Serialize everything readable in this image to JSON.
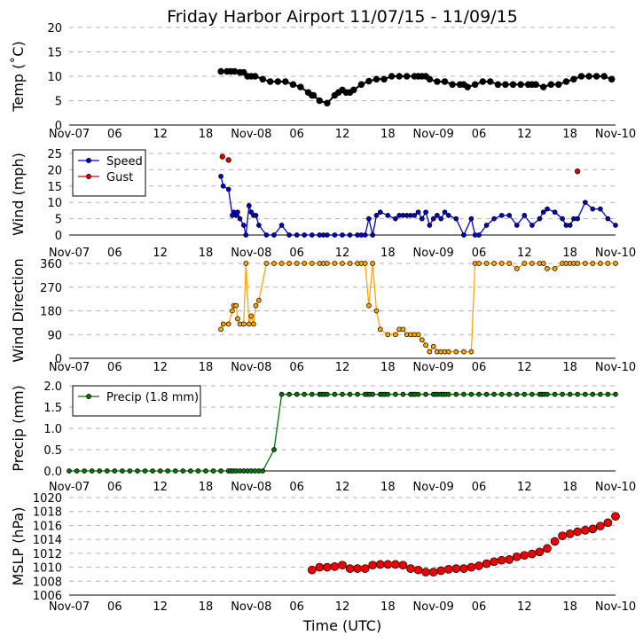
{
  "title": "Friday Harbor Airport 11/07/15 - 11/09/15",
  "xlabel": "Time (UTC)",
  "x_ticks": [
    "Nov-07",
    "06",
    "12",
    "18",
    "Nov-08",
    "06",
    "12",
    "18",
    "Nov-09",
    "06",
    "12",
    "18",
    "Nov-10"
  ],
  "x_range_hours": [
    0,
    72
  ],
  "colors": {
    "temp": "#000000",
    "speed": "#0000cc",
    "gust": "#dd0000",
    "dir": "#ffa500",
    "precip": "#007700",
    "mslp": "#ee0000"
  },
  "chart_data": [
    {
      "type": "line",
      "ylabel": "Temp (˚C)",
      "ylim": [
        0,
        20
      ],
      "yticks": [
        "0",
        "5",
        "10",
        "15",
        "20"
      ],
      "grid": true,
      "series": [
        {
          "x": [
            20,
            20.8,
            21.3,
            21.8,
            22.5,
            23,
            23.5,
            24,
            24.5,
            25.5,
            26.5,
            27.5,
            28.5,
            29.5,
            30.5,
            31.5,
            32,
            32.2,
            33,
            34,
            35,
            35.5,
            36,
            36.5,
            37,
            37.5,
            38.5,
            39.5,
            40.5,
            41.5,
            42.5,
            43.5,
            44.5,
            45.5,
            46,
            46.5,
            47,
            47.5,
            48.5,
            49.5,
            50.5,
            51.5,
            52,
            52.5,
            53.5,
            54.5,
            55.5,
            56.5,
            57.5,
            58.5,
            59.5,
            60.5,
            61,
            61.5,
            62.5,
            63.5,
            64.5,
            65.5,
            66.5,
            67.5,
            68.5,
            69.5,
            70.5,
            71.5
          ],
          "y": [
            11,
            11,
            11,
            11,
            10.8,
            10.8,
            10,
            10,
            10,
            9.4,
            8.9,
            8.9,
            8.9,
            8.3,
            7.8,
            6.7,
            6.1,
            6.1,
            5,
            4.5,
            6.1,
            6.7,
            7.2,
            6.7,
            6.7,
            7.2,
            8.3,
            9,
            9.4,
            9.4,
            10,
            10,
            10,
            10,
            10,
            10,
            10,
            9.4,
            8.9,
            8.9,
            8.3,
            8.3,
            8.3,
            7.8,
            8.3,
            8.9,
            8.9,
            8.3,
            8.3,
            8.3,
            8.3,
            8.3,
            8.3,
            8.3,
            7.8,
            8.3,
            8.3,
            8.9,
            9.4,
            10,
            10,
            10,
            10,
            9.4
          ]
        }
      ]
    },
    {
      "type": "line",
      "ylabel": "Wind (mph)",
      "ylim": [
        0,
        25
      ],
      "yticks": [
        "0",
        "5",
        "10",
        "15",
        "20",
        "25"
      ],
      "legend": "upper-left",
      "grid": true,
      "series": [
        {
          "name": "Speed",
          "x": [
            20,
            20.3,
            21,
            21.5,
            21.7,
            22,
            22.2,
            22.5,
            23,
            23.3,
            23.7,
            24,
            24.3,
            24.6,
            25,
            26,
            27,
            28,
            29,
            30,
            31,
            32,
            33,
            33.5,
            34,
            35,
            36,
            37,
            38,
            38.5,
            39,
            39.5,
            40,
            40.5,
            41,
            42,
            43,
            43.5,
            44,
            44.5,
            45,
            45.5,
            46,
            46.5,
            47,
            47.5,
            48,
            48.5,
            49,
            49.5,
            50,
            51,
            52,
            53,
            53.5,
            54,
            55,
            56,
            57,
            58,
            59,
            60,
            61,
            62,
            62.5,
            63,
            64,
            65,
            65.5,
            66,
            66.5,
            67,
            68,
            69,
            70,
            71,
            72
          ],
          "y": [
            18,
            15,
            14,
            6,
            7,
            6,
            7,
            5,
            3,
            0,
            9,
            7,
            6,
            6,
            3,
            0,
            0,
            3,
            0,
            0,
            0,
            0,
            0,
            0,
            0,
            0,
            0,
            0,
            0,
            0,
            0,
            5,
            0,
            6,
            7,
            6,
            5,
            6,
            6,
            6,
            6,
            6,
            7,
            5,
            7,
            3,
            5,
            6,
            5,
            7,
            6,
            5,
            0,
            5,
            0,
            0,
            3,
            5,
            6,
            6,
            3,
            6,
            3,
            5,
            7,
            8,
            7,
            5,
            3,
            3,
            5,
            5,
            10,
            8,
            8,
            5,
            3
          ]
        },
        {
          "name": "Gust",
          "x": [
            20.2,
            21,
            67
          ],
          "y": [
            24,
            23,
            19.5
          ]
        }
      ]
    },
    {
      "type": "line",
      "ylabel": "Wind Direction",
      "ylim": [
        0,
        360
      ],
      "yticks": [
        "0",
        "90",
        "180",
        "270",
        "360"
      ],
      "grid": true,
      "series": [
        {
          "x": [
            20,
            20.3,
            21,
            21.5,
            21.7,
            22,
            22.2,
            22.5,
            23,
            23.3,
            23.7,
            24,
            24.3,
            24.6,
            25,
            26,
            27,
            28,
            29,
            30,
            31,
            32,
            33,
            33.5,
            34,
            35,
            36,
            37,
            38,
            38.5,
            39,
            39.5,
            40,
            40.5,
            41,
            42,
            43,
            43.5,
            44,
            44.5,
            45,
            45.5,
            46,
            46.5,
            47,
            47.5,
            48,
            48.5,
            49,
            49.5,
            50,
            51,
            52,
            53,
            53.5,
            54,
            55,
            56,
            57,
            58,
            59,
            60,
            61,
            62,
            62.5,
            63,
            64,
            65,
            65.5,
            66,
            66.5,
            67,
            68,
            69,
            70,
            71,
            72
          ],
          "y": [
            110,
            130,
            130,
            180,
            200,
            200,
            150,
            130,
            130,
            360,
            130,
            160,
            130,
            200,
            220,
            360,
            360,
            360,
            360,
            360,
            360,
            360,
            360,
            360,
            360,
            360,
            360,
            360,
            360,
            360,
            360,
            200,
            360,
            180,
            110,
            90,
            90,
            110,
            110,
            90,
            90,
            90,
            90,
            70,
            50,
            25,
            45,
            25,
            25,
            25,
            25,
            25,
            25,
            25,
            360,
            360,
            360,
            360,
            360,
            360,
            340,
            360,
            360,
            360,
            360,
            340,
            340,
            360,
            360,
            360,
            360,
            360,
            360,
            360,
            360,
            360,
            360
          ]
        }
      ]
    },
    {
      "type": "line",
      "ylabel": "Precip (mm)",
      "ylim": [
        0,
        2
      ],
      "yticks": [
        "0.0",
        "0.5",
        "1.0",
        "1.5",
        "2.0"
      ],
      "legend": "upper-left",
      "grid": true,
      "series": [
        {
          "name": "Precip (1.8 mm)",
          "x": [
            0,
            1,
            2,
            3,
            4,
            5,
            6,
            7,
            8,
            9,
            10,
            11,
            12,
            13,
            14,
            15,
            16,
            17,
            18,
            19,
            20,
            21,
            21.3,
            21.6,
            22,
            22.5,
            23,
            23.5,
            24,
            24.5,
            25,
            25.5,
            27,
            28,
            29,
            30,
            31,
            32,
            33,
            33.3,
            33.6,
            34,
            35,
            36,
            37,
            38,
            39,
            39.3,
            39.6,
            40,
            41,
            41.3,
            41.6,
            42,
            43,
            44,
            45,
            45.3,
            45.6,
            46,
            47,
            48,
            48.3,
            48.6,
            49,
            49.3,
            49.6,
            50,
            51,
            52,
            53,
            54,
            55,
            56,
            57,
            58,
            59,
            60,
            61,
            62,
            62.3,
            62.6,
            63,
            64,
            65,
            66,
            67,
            68,
            69,
            70,
            71,
            72
          ],
          "y": [
            0,
            0,
            0,
            0,
            0,
            0,
            0,
            0,
            0,
            0,
            0,
            0,
            0,
            0,
            0,
            0,
            0,
            0,
            0,
            0,
            0,
            0,
            0,
            0,
            0,
            0,
            0,
            0,
            0,
            0,
            0,
            0,
            0.5,
            1.8,
            1.8,
            1.8,
            1.8,
            1.8,
            1.8,
            1.8,
            1.8,
            1.8,
            1.8,
            1.8,
            1.8,
            1.8,
            1.8,
            1.8,
            1.8,
            1.8,
            1.8,
            1.8,
            1.8,
            1.8,
            1.8,
            1.8,
            1.8,
            1.8,
            1.8,
            1.8,
            1.8,
            1.8,
            1.8,
            1.8,
            1.8,
            1.8,
            1.8,
            1.8,
            1.8,
            1.8,
            1.8,
            1.8,
            1.8,
            1.8,
            1.8,
            1.8,
            1.8,
            1.8,
            1.8,
            1.8,
            1.8,
            1.8,
            1.8,
            1.8,
            1.8,
            1.8,
            1.8,
            1.8,
            1.8,
            1.8,
            1.8,
            1.8
          ]
        }
      ]
    },
    {
      "type": "line",
      "ylabel": "MSLP (hPa)",
      "ylim": [
        1006,
        1020
      ],
      "yticks": [
        "1006",
        "1008",
        "1010",
        "1012",
        "1014",
        "1016",
        "1018",
        "1020"
      ],
      "grid": true,
      "series": [
        {
          "x": [
            32,
            33,
            34,
            35,
            36,
            37,
            38,
            39,
            40,
            41,
            42,
            43,
            44,
            45,
            46,
            47,
            48,
            49,
            50,
            51,
            52,
            53,
            54,
            55,
            56,
            57,
            58,
            59,
            60,
            61,
            62,
            63,
            64,
            65,
            66,
            67,
            68,
            69,
            70,
            71,
            72
          ],
          "y": [
            1009.6,
            1010,
            1010,
            1010.1,
            1010.3,
            1009.8,
            1009.8,
            1009.8,
            1010.3,
            1010.4,
            1010.4,
            1010.4,
            1010.3,
            1009.8,
            1009.6,
            1009.3,
            1009.3,
            1009.5,
            1009.7,
            1009.8,
            1009.8,
            1010,
            1010.2,
            1010.5,
            1010.8,
            1011,
            1011.1,
            1011.5,
            1011.7,
            1011.9,
            1012.2,
            1012.7,
            1013.7,
            1014.5,
            1014.8,
            1015.1,
            1015.3,
            1015.5,
            1015.9,
            1016.4,
            1017.3
          ]
        }
      ]
    }
  ]
}
